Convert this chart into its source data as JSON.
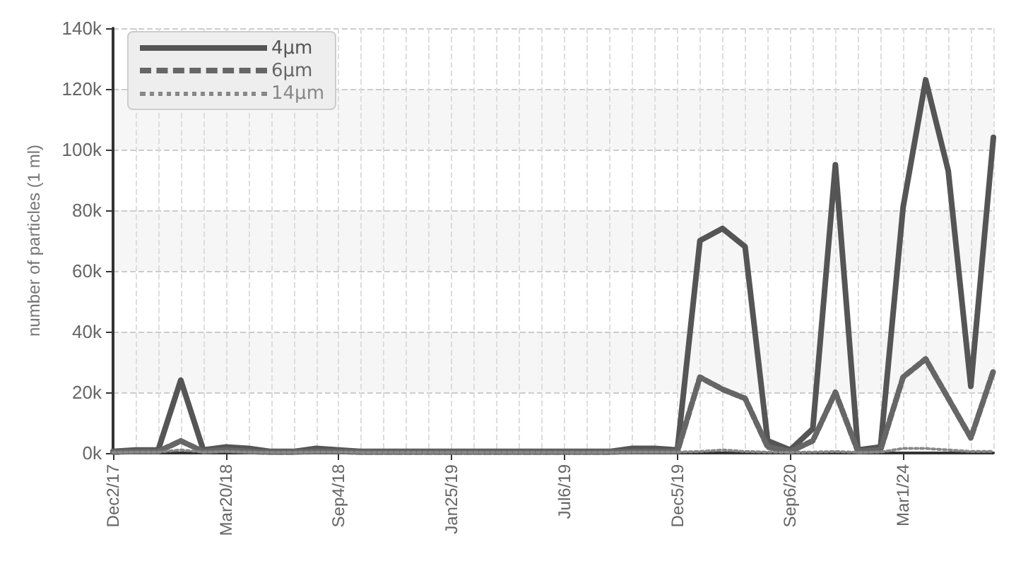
{
  "chart_data": {
    "type": "line",
    "ylabel": "number of particles (1 ml)",
    "categories": [
      "Dec2/17",
      null,
      null,
      null,
      null,
      "Mar20/18",
      null,
      null,
      null,
      null,
      "Sep4/18",
      null,
      null,
      null,
      null,
      "Jan25/19",
      null,
      null,
      null,
      null,
      "Jul6/19",
      null,
      null,
      null,
      null,
      "Dec5/19",
      null,
      null,
      null,
      null,
      "Sep6/20",
      null,
      null,
      null,
      null,
      "Mar1/24",
      null,
      null,
      null,
      null
    ],
    "series": [
      {
        "name": "4μm",
        "color": "#555555",
        "line_style": "solid",
        "values": [
          0.5,
          1,
          1,
          24,
          1,
          2,
          1.5,
          0.5,
          0.5,
          1.5,
          1,
          0.5,
          0.5,
          0.5,
          0.5,
          0.5,
          0.5,
          0.5,
          0.5,
          0.5,
          0.5,
          0.5,
          0.5,
          1.5,
          1.5,
          1,
          70,
          74,
          68,
          4,
          1,
          8,
          95,
          1,
          2,
          81,
          123,
          93,
          22,
          104
        ]
      },
      {
        "name": "6μm",
        "color": "#666666",
        "line_style": "dashed",
        "values": [
          0.3,
          0.5,
          0.5,
          4,
          0.5,
          1,
          0.5,
          0.3,
          0.3,
          0.5,
          0.5,
          0.3,
          0.3,
          0.3,
          0.3,
          0.3,
          0.3,
          0.3,
          0.3,
          0.3,
          0.3,
          0.3,
          0.3,
          0.5,
          0.5,
          0.5,
          25,
          21,
          18,
          2,
          0.5,
          4,
          20,
          0.5,
          1,
          25,
          31,
          18,
          5,
          27
        ]
      },
      {
        "name": "14μm",
        "color": "#888888",
        "line_style": "dotted",
        "values": [
          0.2,
          0.3,
          0.3,
          1,
          0.3,
          0.5,
          0.3,
          0.2,
          0.2,
          0.3,
          0.3,
          0.2,
          0.2,
          0.2,
          0.2,
          0.2,
          0.2,
          0.2,
          0.2,
          0.2,
          0.2,
          0.2,
          0.2,
          0.3,
          0.3,
          0.3,
          0.5,
          1,
          0.5,
          0.3,
          0.2,
          0.3,
          0.5,
          0.2,
          0.3,
          1.5,
          1.5,
          1,
          0.5,
          0.5
        ]
      }
    ],
    "ylim": [
      0,
      140
    ],
    "yticks": [
      {
        "value": 0,
        "label": "0k"
      },
      {
        "value": 20,
        "label": "20k"
      },
      {
        "value": 40,
        "label": "40k"
      },
      {
        "value": 60,
        "label": "60k"
      },
      {
        "value": 80,
        "label": "80k"
      },
      {
        "value": 100,
        "label": "100k"
      },
      {
        "value": 120,
        "label": "120k"
      },
      {
        "value": 140,
        "label": "140k"
      }
    ],
    "grid": true,
    "legend": "top left",
    "marker": "none"
  }
}
